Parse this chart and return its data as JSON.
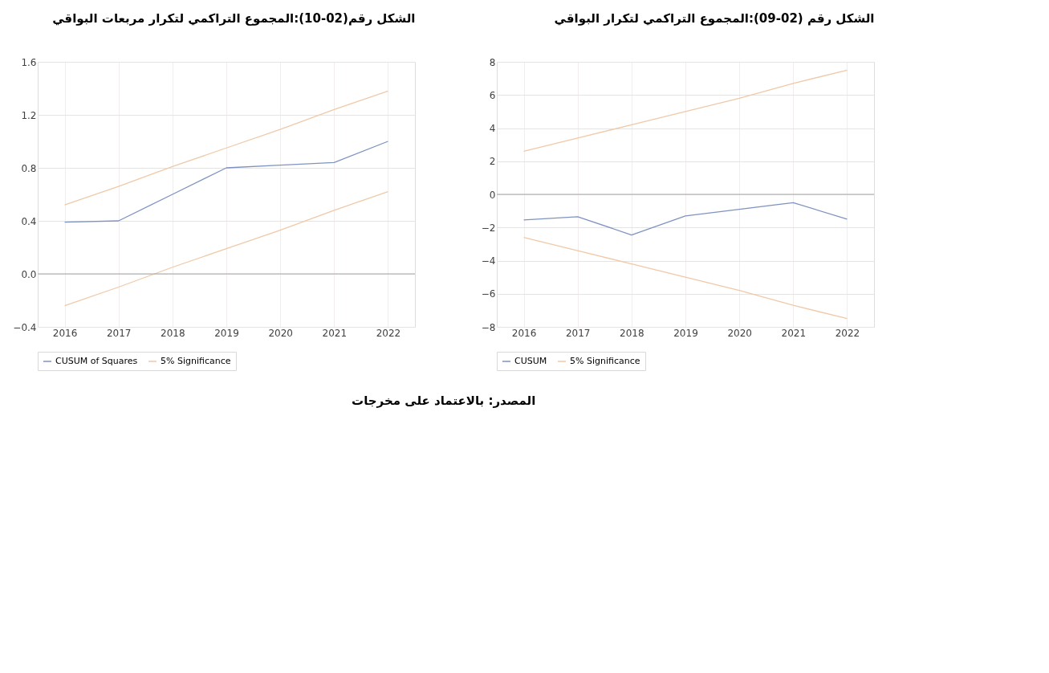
{
  "chart_data": [
    {
      "type": "line",
      "title": "الشكل رقم (02-09):المجموع التراكمي لتكرار البواقي",
      "categories": [
        "2016",
        "2017",
        "2018",
        "2019",
        "2020",
        "2021",
        "2022"
      ],
      "ylim": [
        -8,
        8
      ],
      "yticks": [
        -8,
        -6,
        -4,
        -2,
        0,
        2,
        4,
        6,
        8
      ],
      "grid": true,
      "legend": "bottom",
      "ref_lines": [
        {
          "axis": "y",
          "value": 0,
          "color": "#a6a6a6"
        }
      ],
      "series": [
        {
          "name": "CUSUM",
          "color": "#7f93c1",
          "values": [
            -1.55,
            -1.35,
            -2.45,
            -1.3,
            -0.9,
            -0.5,
            -1.5
          ]
        },
        {
          "name": "5% Significance",
          "color": "#f0c9a8",
          "values": [
            2.6,
            3.4,
            4.2,
            5.0,
            5.8,
            6.7,
            7.5
          ]
        },
        {
          "color": "#f0c9a8",
          "values": [
            -2.6,
            -3.4,
            -4.2,
            -5.0,
            -5.8,
            -6.7,
            -7.5
          ]
        }
      ],
      "annotations": [
        "المصدر: بالاعتماد على مخرجات"
      ]
    },
    {
      "type": "line",
      "title": "الشكل رقم(02-10):المجموع التراكمي لتكرار مربعات البواقي",
      "categories": [
        "2016",
        "2017",
        "2018",
        "2019",
        "2020",
        "2021",
        "2022"
      ],
      "ylim": [
        -0.4,
        1.6
      ],
      "yticks": [
        -0.4,
        {
          "value": 0,
          "label": "0.0"
        },
        0.4,
        0.8,
        1.2,
        1.6
      ],
      "grid": true,
      "legend": "bottom",
      "ref_lines": [
        {
          "axis": "y",
          "value": 0,
          "color": "#a6a6a6"
        }
      ],
      "series": [
        {
          "name": "CUSUM of Squares",
          "color": "#7f93c1",
          "values": [
            0.39,
            0.4,
            0.6,
            0.8,
            0.82,
            0.84,
            1.0
          ]
        },
        {
          "name": "5% Significance",
          "color": "#f0c9a8",
          "values": [
            0.52,
            0.66,
            0.81,
            0.95,
            1.09,
            1.24,
            1.38
          ]
        },
        {
          "color": "#f0c9a8",
          "values": [
            -0.24,
            -0.1,
            0.05,
            0.19,
            0.33,
            0.48,
            0.62
          ]
        }
      ]
    }
  ]
}
